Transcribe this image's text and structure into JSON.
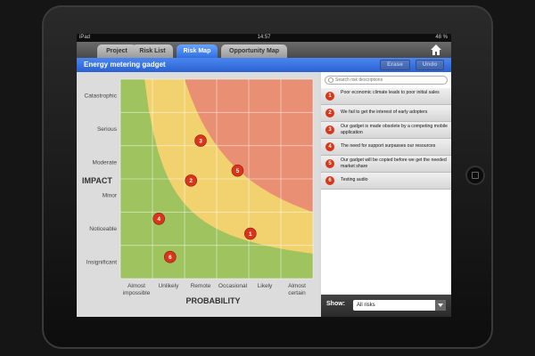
{
  "status_bar": {
    "carrier": "iPad",
    "time": "14:57",
    "battery": "48 %"
  },
  "tabs": [
    {
      "label": "Project",
      "active": false
    },
    {
      "label": "Risk List",
      "active": false
    },
    {
      "label": "Risk Map",
      "active": true
    },
    {
      "label": "Opportunity Map",
      "active": false
    }
  ],
  "header": {
    "home_icon": "home-icon",
    "title": "Energy metering gadget",
    "erase_label": "Erase",
    "undo_label": "Undo"
  },
  "search": {
    "placeholder": "Search risk descriptions"
  },
  "risks": [
    {
      "number": "1",
      "text": "Poor economic climate leads to poor initial sales"
    },
    {
      "number": "2",
      "text": "We fail to get the interest of early adopters"
    },
    {
      "number": "3",
      "text": "Our gadget is made obsolete by a competing mobile application"
    },
    {
      "number": "4",
      "text": "The need for support surpasses our resources"
    },
    {
      "number": "5",
      "text": "Our gadget will be copied before we get the needed market share"
    },
    {
      "number": "6",
      "text": "Testing audio"
    }
  ],
  "show_filter": {
    "label": "Show:",
    "value": "All risks"
  },
  "chart_data": {
    "type": "scatter",
    "xlabel": "PROBABILITY",
    "ylabel": "IMPACT",
    "x_categories": [
      "Almost impossible",
      "Unlikely",
      "Remote",
      "Occasional",
      "Likely",
      "Almost certain"
    ],
    "y_categories": [
      "Insignificant",
      "Noticeable",
      "Minor",
      "Moderate",
      "Serious",
      "Catastrophic"
    ],
    "zones": [
      {
        "name": "low",
        "color": "#9fc35f"
      },
      {
        "name": "medium",
        "color": "#f2d26e"
      },
      {
        "name": "high",
        "color": "#e98f74"
      }
    ],
    "points": [
      {
        "label": "1",
        "x": 4.05,
        "y": 1.35
      },
      {
        "label": "2",
        "x": 2.2,
        "y": 2.95
      },
      {
        "label": "3",
        "x": 2.5,
        "y": 4.15
      },
      {
        "label": "4",
        "x": 1.2,
        "y": 1.8
      },
      {
        "label": "5",
        "x": 3.65,
        "y": 3.25
      },
      {
        "label": "6",
        "x": 1.55,
        "y": 0.65
      }
    ],
    "point_color": "#d8361b"
  }
}
